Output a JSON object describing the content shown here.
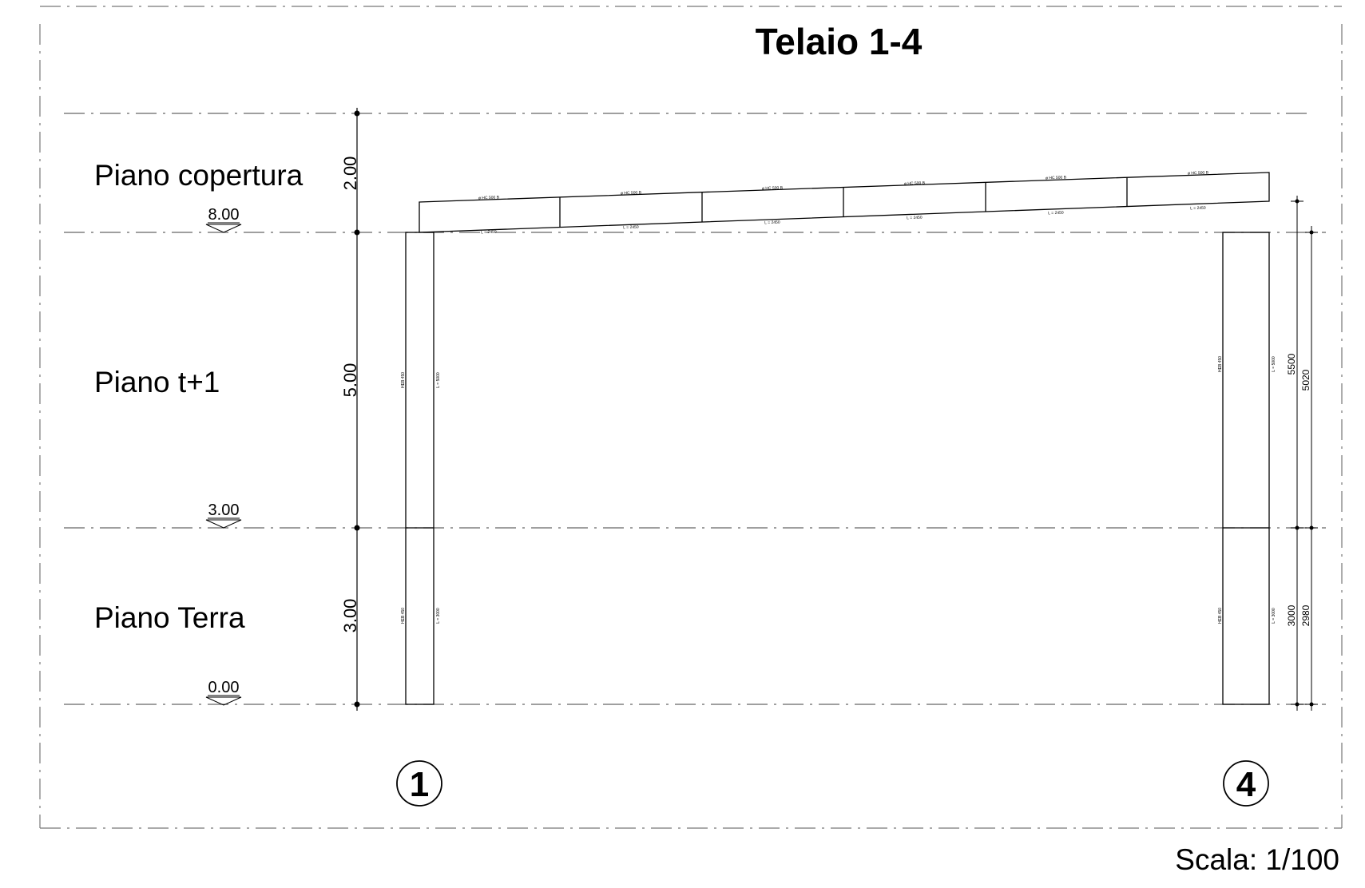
{
  "title": "Telaio 1-4",
  "scale": "Scala: 1/100",
  "floors": [
    {
      "label": "Piano copertura"
    },
    {
      "label": "Piano t+1"
    },
    {
      "label": "Piano Terra"
    }
  ],
  "levels": [
    "8.00",
    "3.00",
    "0.00"
  ],
  "dimensions": [
    "2.00",
    "5.00",
    "3.00"
  ],
  "axes": [
    "1",
    "4"
  ],
  "right_dims": {
    "col_upper": "5500",
    "col_lower": "3000",
    "total_upper": "5020",
    "total_lower": "2980"
  },
  "beam_labels": {
    "sections": [
      "ø HC 500 B",
      "ø HC 500 B",
      "ø HC 500 B",
      "ø HC 500 B",
      "ø HC 500 B",
      "ø HC 500 B"
    ],
    "lengths": [
      "L = 2450",
      "L = 2450",
      "L = 2450",
      "L = 2450",
      "L = 2450",
      "L = 2450"
    ]
  },
  "column_labels": {
    "left_upper": "HEB 450",
    "left_lower": "HEB 450",
    "right_upper": "HEB 450",
    "right_lower": "HEB 450",
    "len_upper": "L = 5000",
    "len_lower": "L = 3000"
  }
}
